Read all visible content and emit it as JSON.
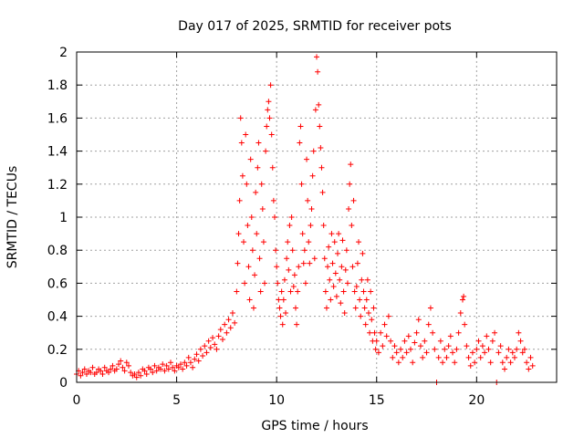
{
  "chart_data": {
    "type": "scatter",
    "title": "Day 017 of 2025, SRMTID for receiver pots",
    "xlabel": "GPS time / hours",
    "ylabel": "SRMTID / TECUs",
    "xlim": [
      0,
      24
    ],
    "ylim": [
      0,
      2
    ],
    "xticks": [
      0,
      5,
      10,
      15,
      20
    ],
    "yticks": [
      0,
      0.2,
      0.4,
      0.6,
      0.8,
      1,
      1.2,
      1.4,
      1.6,
      1.8,
      2
    ],
    "xtick_labels": [
      "0",
      "5",
      "10",
      "15",
      "20"
    ],
    "ytick_labels": [
      "0",
      "0.2",
      "0.4",
      "0.6",
      "0.8",
      "1",
      "1.2",
      "1.4",
      "1.6",
      "1.8",
      "2"
    ],
    "grid": true,
    "marker": "+",
    "color": "#ff0000",
    "series": [
      {
        "name": "SRMTID",
        "points": [
          [
            0.0,
            0.05
          ],
          [
            0.1,
            0.07
          ],
          [
            0.2,
            0.04
          ],
          [
            0.3,
            0.06
          ],
          [
            0.4,
            0.08
          ],
          [
            0.5,
            0.05
          ],
          [
            0.6,
            0.07
          ],
          [
            0.7,
            0.06
          ],
          [
            0.8,
            0.09
          ],
          [
            0.9,
            0.05
          ],
          [
            1.0,
            0.06
          ],
          [
            1.1,
            0.08
          ],
          [
            1.2,
            0.07
          ],
          [
            1.3,
            0.05
          ],
          [
            1.4,
            0.09
          ],
          [
            1.5,
            0.07
          ],
          [
            1.6,
            0.06
          ],
          [
            1.7,
            0.08
          ],
          [
            1.8,
            0.1
          ],
          [
            1.9,
            0.07
          ],
          [
            2.0,
            0.08
          ],
          [
            2.1,
            0.11
          ],
          [
            2.2,
            0.13
          ],
          [
            2.3,
            0.09
          ],
          [
            2.4,
            0.07
          ],
          [
            2.5,
            0.12
          ],
          [
            2.6,
            0.1
          ],
          [
            2.7,
            0.06
          ],
          [
            2.8,
            0.04
          ],
          [
            2.9,
            0.05
          ],
          [
            3.0,
            0.03
          ],
          [
            3.1,
            0.06
          ],
          [
            3.2,
            0.04
          ],
          [
            3.3,
            0.08
          ],
          [
            3.4,
            0.07
          ],
          [
            3.5,
            0.05
          ],
          [
            3.6,
            0.09
          ],
          [
            3.7,
            0.08
          ],
          [
            3.8,
            0.06
          ],
          [
            3.9,
            0.1
          ],
          [
            4.0,
            0.07
          ],
          [
            4.1,
            0.09
          ],
          [
            4.2,
            0.08
          ],
          [
            4.3,
            0.11
          ],
          [
            4.4,
            0.07
          ],
          [
            4.5,
            0.1
          ],
          [
            4.6,
            0.08
          ],
          [
            4.7,
            0.12
          ],
          [
            4.8,
            0.09
          ],
          [
            4.9,
            0.07
          ],
          [
            5.0,
            0.1
          ],
          [
            5.1,
            0.09
          ],
          [
            5.2,
            0.11
          ],
          [
            5.3,
            0.08
          ],
          [
            5.4,
            0.12
          ],
          [
            5.5,
            0.1
          ],
          [
            5.6,
            0.15
          ],
          [
            5.7,
            0.12
          ],
          [
            5.8,
            0.09
          ],
          [
            5.9,
            0.14
          ],
          [
            6.0,
            0.17
          ],
          [
            6.1,
            0.13
          ],
          [
            6.2,
            0.2
          ],
          [
            6.3,
            0.16
          ],
          [
            6.4,
            0.22
          ],
          [
            6.5,
            0.18
          ],
          [
            6.6,
            0.25
          ],
          [
            6.7,
            0.21
          ],
          [
            6.8,
            0.27
          ],
          [
            6.9,
            0.23
          ],
          [
            7.0,
            0.2
          ],
          [
            7.1,
            0.28
          ],
          [
            7.2,
            0.32
          ],
          [
            7.3,
            0.26
          ],
          [
            7.4,
            0.35
          ],
          [
            7.5,
            0.3
          ],
          [
            7.6,
            0.38
          ],
          [
            7.7,
            0.33
          ],
          [
            7.8,
            0.42
          ],
          [
            7.9,
            0.36
          ],
          [
            8.0,
            0.55
          ],
          [
            8.05,
            0.72
          ],
          [
            8.1,
            0.9
          ],
          [
            8.15,
            1.1
          ],
          [
            8.2,
            1.6
          ],
          [
            8.25,
            1.45
          ],
          [
            8.3,
            1.25
          ],
          [
            8.35,
            0.85
          ],
          [
            8.4,
            0.6
          ],
          [
            8.45,
            1.5
          ],
          [
            8.5,
            1.2
          ],
          [
            8.55,
            0.95
          ],
          [
            8.6,
            0.7
          ],
          [
            8.65,
            0.5
          ],
          [
            8.7,
            1.35
          ],
          [
            8.75,
            1.0
          ],
          [
            8.8,
            0.8
          ],
          [
            8.85,
            0.45
          ],
          [
            8.9,
            0.65
          ],
          [
            8.95,
            1.15
          ],
          [
            9.0,
            0.9
          ],
          [
            9.05,
            1.3
          ],
          [
            9.1,
            1.45
          ],
          [
            9.15,
            0.75
          ],
          [
            9.2,
            0.55
          ],
          [
            9.25,
            1.2
          ],
          [
            9.3,
            1.05
          ],
          [
            9.35,
            0.85
          ],
          [
            9.4,
            0.6
          ],
          [
            9.45,
            1.4
          ],
          [
            9.5,
            1.55
          ],
          [
            9.55,
            1.65
          ],
          [
            9.6,
            1.7
          ],
          [
            9.65,
            1.6
          ],
          [
            9.7,
            1.8
          ],
          [
            9.75,
            1.5
          ],
          [
            9.8,
            1.3
          ],
          [
            9.85,
            1.1
          ],
          [
            9.9,
            1.0
          ],
          [
            9.95,
            0.8
          ],
          [
            10.0,
            0.7
          ],
          [
            10.05,
            0.6
          ],
          [
            10.1,
            0.5
          ],
          [
            10.15,
            0.45
          ],
          [
            10.2,
            0.4
          ],
          [
            10.25,
            0.55
          ],
          [
            10.3,
            0.35
          ],
          [
            10.35,
            0.5
          ],
          [
            10.4,
            0.62
          ],
          [
            10.45,
            0.42
          ],
          [
            10.5,
            0.75
          ],
          [
            10.55,
            0.85
          ],
          [
            10.6,
            0.68
          ],
          [
            10.65,
            0.95
          ],
          [
            10.7,
            0.55
          ],
          [
            10.75,
            1.0
          ],
          [
            10.8,
            0.8
          ],
          [
            10.85,
            0.58
          ],
          [
            10.9,
            0.65
          ],
          [
            10.95,
            0.45
          ],
          [
            11.0,
            0.35
          ],
          [
            11.05,
            0.55
          ],
          [
            11.1,
            0.7
          ],
          [
            11.15,
            1.45
          ],
          [
            11.2,
            1.55
          ],
          [
            11.25,
            1.2
          ],
          [
            11.3,
            0.9
          ],
          [
            11.35,
            0.72
          ],
          [
            11.4,
            0.8
          ],
          [
            11.45,
            0.6
          ],
          [
            11.5,
            1.35
          ],
          [
            11.55,
            1.1
          ],
          [
            11.6,
            0.85
          ],
          [
            11.65,
            0.72
          ],
          [
            11.7,
            0.95
          ],
          [
            11.75,
            1.05
          ],
          [
            11.8,
            1.25
          ],
          [
            11.85,
            1.4
          ],
          [
            11.9,
            0.75
          ],
          [
            11.95,
            1.65
          ],
          [
            12.0,
            1.97
          ],
          [
            12.05,
            1.88
          ],
          [
            12.1,
            1.68
          ],
          [
            12.15,
            1.55
          ],
          [
            12.2,
            1.42
          ],
          [
            12.25,
            1.3
          ],
          [
            12.3,
            1.15
          ],
          [
            12.35,
            0.95
          ],
          [
            12.4,
            0.75
          ],
          [
            12.45,
            0.55
          ],
          [
            12.5,
            0.45
          ],
          [
            12.55,
            0.7
          ],
          [
            12.6,
            0.82
          ],
          [
            12.65,
            0.62
          ],
          [
            12.7,
            0.5
          ],
          [
            12.75,
            0.9
          ],
          [
            12.8,
            0.72
          ],
          [
            12.85,
            0.58
          ],
          [
            12.9,
            0.85
          ],
          [
            12.95,
            0.66
          ],
          [
            13.0,
            0.52
          ],
          [
            13.05,
            0.78
          ],
          [
            13.1,
            0.9
          ],
          [
            13.15,
            0.62
          ],
          [
            13.2,
            0.48
          ],
          [
            13.25,
            0.7
          ],
          [
            13.3,
            0.86
          ],
          [
            13.35,
            0.55
          ],
          [
            13.4,
            0.42
          ],
          [
            13.45,
            0.68
          ],
          [
            13.5,
            0.8
          ],
          [
            13.55,
            0.6
          ],
          [
            13.6,
            1.05
          ],
          [
            13.65,
            1.2
          ],
          [
            13.7,
            1.32
          ],
          [
            13.75,
            0.95
          ],
          [
            13.8,
            0.7
          ],
          [
            13.85,
            1.1
          ],
          [
            13.9,
            0.55
          ],
          [
            13.95,
            0.45
          ],
          [
            14.0,
            0.58
          ],
          [
            14.05,
            0.72
          ],
          [
            14.1,
            0.85
          ],
          [
            14.15,
            0.5
          ],
          [
            14.2,
            0.4
          ],
          [
            14.25,
            0.62
          ],
          [
            14.3,
            0.78
          ],
          [
            14.35,
            0.55
          ],
          [
            14.4,
            0.45
          ],
          [
            14.45,
            0.35
          ],
          [
            14.5,
            0.5
          ],
          [
            14.55,
            0.62
          ],
          [
            14.6,
            0.42
          ],
          [
            14.65,
            0.3
          ],
          [
            14.7,
            0.55
          ],
          [
            14.75,
            0.38
          ],
          [
            14.8,
            0.25
          ],
          [
            14.85,
            0.45
          ],
          [
            14.9,
            0.3
          ],
          [
            14.95,
            0.2
          ],
          [
            15.0,
            0.25
          ],
          [
            15.1,
            0.18
          ],
          [
            15.2,
            0.3
          ],
          [
            15.3,
            0.22
          ],
          [
            15.4,
            0.35
          ],
          [
            15.5,
            0.28
          ],
          [
            15.6,
            0.4
          ],
          [
            15.7,
            0.25
          ],
          [
            15.8,
            0.15
          ],
          [
            15.9,
            0.22
          ],
          [
            16.0,
            0.18
          ],
          [
            16.1,
            0.12
          ],
          [
            16.2,
            0.2
          ],
          [
            16.3,
            0.15
          ],
          [
            16.4,
            0.25
          ],
          [
            16.5,
            0.18
          ],
          [
            16.6,
            0.28
          ],
          [
            16.7,
            0.2
          ],
          [
            16.8,
            0.12
          ],
          [
            16.9,
            0.24
          ],
          [
            17.0,
            0.3
          ],
          [
            17.1,
            0.38
          ],
          [
            17.2,
            0.22
          ],
          [
            17.3,
            0.15
          ],
          [
            17.4,
            0.25
          ],
          [
            17.5,
            0.18
          ],
          [
            17.6,
            0.35
          ],
          [
            17.7,
            0.45
          ],
          [
            17.8,
            0.3
          ],
          [
            17.9,
            0.2
          ],
          [
            18.0,
            0.0
          ],
          [
            18.1,
            0.15
          ],
          [
            18.2,
            0.25
          ],
          [
            18.3,
            0.12
          ],
          [
            18.4,
            0.2
          ],
          [
            18.5,
            0.15
          ],
          [
            18.6,
            0.22
          ],
          [
            18.7,
            0.28
          ],
          [
            18.8,
            0.18
          ],
          [
            18.9,
            0.12
          ],
          [
            19.0,
            0.2
          ],
          [
            19.1,
            0.3
          ],
          [
            19.2,
            0.42
          ],
          [
            19.3,
            0.5
          ],
          [
            19.35,
            0.52
          ],
          [
            19.4,
            0.35
          ],
          [
            19.5,
            0.22
          ],
          [
            19.6,
            0.15
          ],
          [
            19.7,
            0.1
          ],
          [
            19.8,
            0.18
          ],
          [
            19.9,
            0.12
          ],
          [
            20.0,
            0.2
          ],
          [
            20.1,
            0.25
          ],
          [
            20.2,
            0.15
          ],
          [
            20.3,
            0.22
          ],
          [
            20.4,
            0.18
          ],
          [
            20.5,
            0.28
          ],
          [
            20.6,
            0.2
          ],
          [
            20.7,
            0.12
          ],
          [
            20.8,
            0.25
          ],
          [
            20.9,
            0.3
          ],
          [
            21.0,
            0.0
          ],
          [
            21.1,
            0.18
          ],
          [
            21.2,
            0.22
          ],
          [
            21.3,
            0.12
          ],
          [
            21.4,
            0.08
          ],
          [
            21.5,
            0.15
          ],
          [
            21.6,
            0.2
          ],
          [
            21.7,
            0.12
          ],
          [
            21.8,
            0.18
          ],
          [
            21.9,
            0.15
          ],
          [
            22.0,
            0.2
          ],
          [
            22.1,
            0.3
          ],
          [
            22.2,
            0.25
          ],
          [
            22.3,
            0.18
          ],
          [
            22.4,
            0.2
          ],
          [
            22.5,
            0.12
          ],
          [
            22.6,
            0.08
          ],
          [
            22.7,
            0.15
          ],
          [
            22.8,
            0.1
          ]
        ]
      }
    ]
  }
}
